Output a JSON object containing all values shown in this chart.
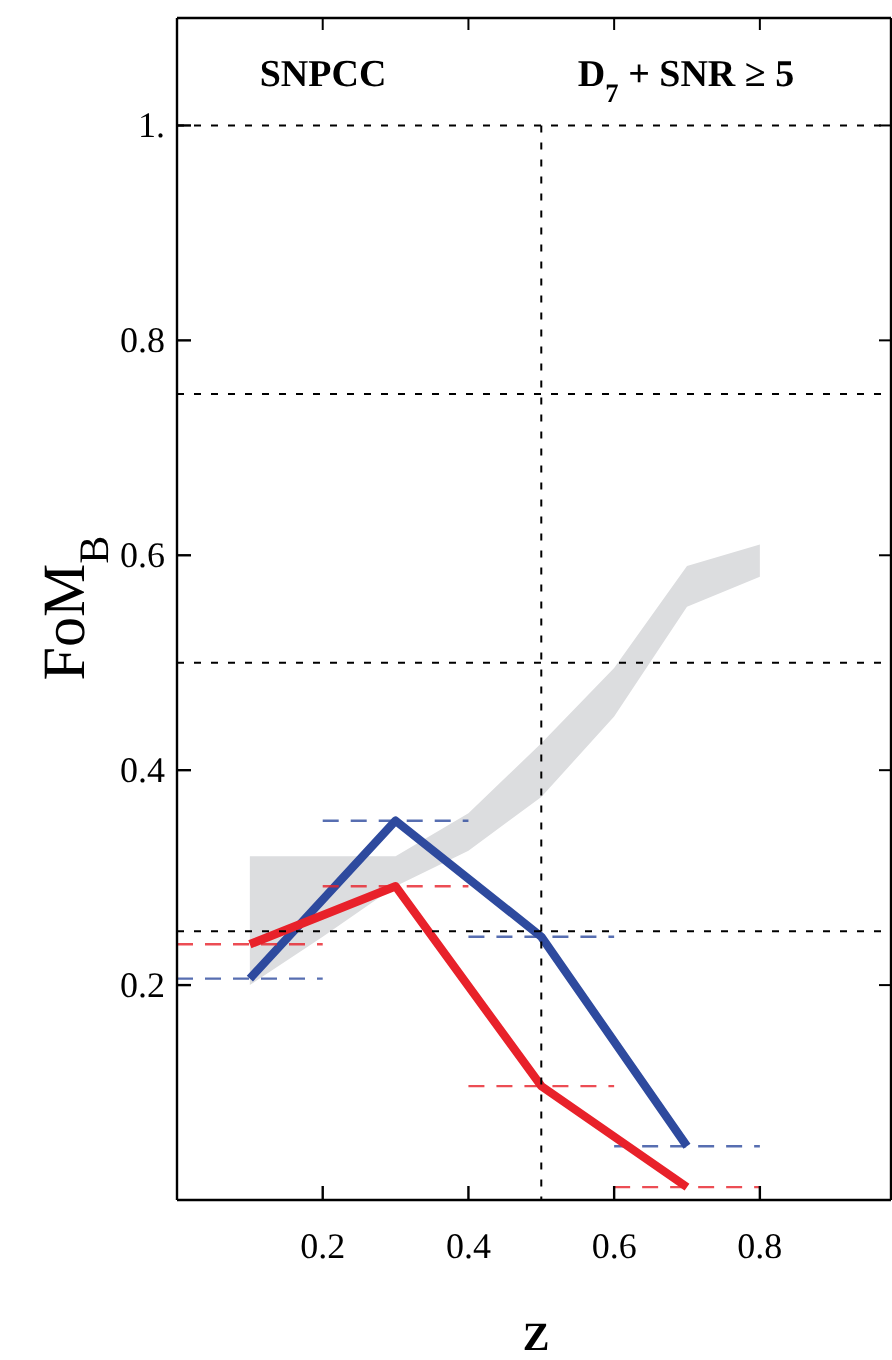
{
  "chart_data": {
    "type": "line",
    "xlabel": "Z",
    "ylabel": "FoM$_{B}$",
    "annotations": [
      "SNPCC",
      "D$_{7}$ + SNR ≥ 5"
    ],
    "xlim": [
      0,
      0.98
    ],
    "ylim": [
      0,
      1.1
    ],
    "xticks": [
      0.2,
      0.4,
      0.6,
      0.8
    ],
    "yticks": [
      0.2,
      0.4,
      0.6,
      0.8,
      {
        "value": 1,
        "label": "1."
      }
    ],
    "series": [
      {
        "type": "area",
        "color": "#dcdddf",
        "x": [
          0.1,
          0.2,
          0.3,
          0.4,
          0.5,
          0.6,
          0.7,
          0.8
        ],
        "values": [
          null,
          null,
          null,
          null,
          null,
          null,
          null,
          null
        ],
        "lower": [
          0.2,
          0.245,
          0.292,
          0.325,
          0.375,
          0.45,
          0.552,
          0.58
        ],
        "upper": [
          0.32,
          0.32,
          0.32,
          0.36,
          0.425,
          0.495,
          0.59,
          0.61
        ]
      },
      {
        "color": "#2e4a9e",
        "x": [
          0.1,
          0.3,
          0.5,
          0.7
        ],
        "values": [
          0.206,
          0.353,
          0.245,
          0.05
        ],
        "xerrors": [
          0.1,
          0.1,
          0.1,
          0.1
        ]
      },
      {
        "color": "#e8212a",
        "x": [
          0.1,
          0.3,
          0.5,
          0.7
        ],
        "values": [
          0.238,
          0.292,
          0.106,
          0.012
        ],
        "xerrors": [
          0.1,
          0.1,
          0.1,
          0.1
        ]
      }
    ],
    "ref_lines": [
      {
        "axis": "y",
        "value": 1,
        "line_style": "dashed"
      },
      {
        "axis": "y",
        "value": 0.75,
        "line_style": "dashed"
      },
      {
        "axis": "y",
        "value": 0.5,
        "line_style": "dashed"
      },
      {
        "axis": "y",
        "value": 0.25,
        "line_style": "dashed"
      },
      {
        "axis": "x",
        "value": 0.5,
        "line_style": "dashed"
      }
    ]
  }
}
